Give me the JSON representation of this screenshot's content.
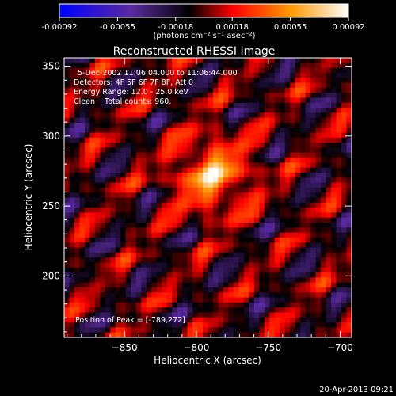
{
  "chart_data": {
    "type": "heatmap",
    "title": "Reconstructed RHESSI Image",
    "colorbar": {
      "tick_labels": [
        "-0.00092",
        "-0.00055",
        "-0.00018",
        "0.00018",
        "0.00055",
        "0.00092"
      ],
      "tick_values": [
        -0.00092,
        -0.00055,
        -0.00018,
        0.00018,
        0.00055,
        0.00092
      ],
      "range": [
        -0.00092,
        0.00092
      ],
      "unit_label": "(photons cm⁻² s⁻¹ asec⁻²)",
      "colors": [
        "#0000ff",
        "#5a2aa0",
        "#000000",
        "#ff0000",
        "#ff8800",
        "#ffffff"
      ]
    },
    "xlabel": "Heliocentric X (arcsec)",
    "ylabel": "Heliocentric Y (arcsec)",
    "xlim": [
      -892,
      -692
    ],
    "ylim": [
      156,
      356
    ],
    "x_ticks": [
      -850,
      -800,
      -750,
      -700
    ],
    "x_tick_labels": [
      "−850",
      "−800",
      "−750",
      "−700"
    ],
    "y_ticks": [
      200,
      250,
      300,
      350
    ],
    "y_tick_labels": [
      "200",
      "250",
      "300",
      "350"
    ],
    "peak": {
      "x": -789,
      "y": 272
    },
    "annotations": [
      "5-Dec-2002 11:06:04.000 to 11:06:44.000",
      "Detectors: 4F 5F 6F 7F 8F, Att 0",
      "Energy Range: 12.0 - 25.0 keV",
      "Clean    Total counts: 960.",
      "Position of Peak = [-789,272]"
    ],
    "grid": false
  },
  "footer": {
    "timestamp": "20-Apr-2013 09:21"
  }
}
